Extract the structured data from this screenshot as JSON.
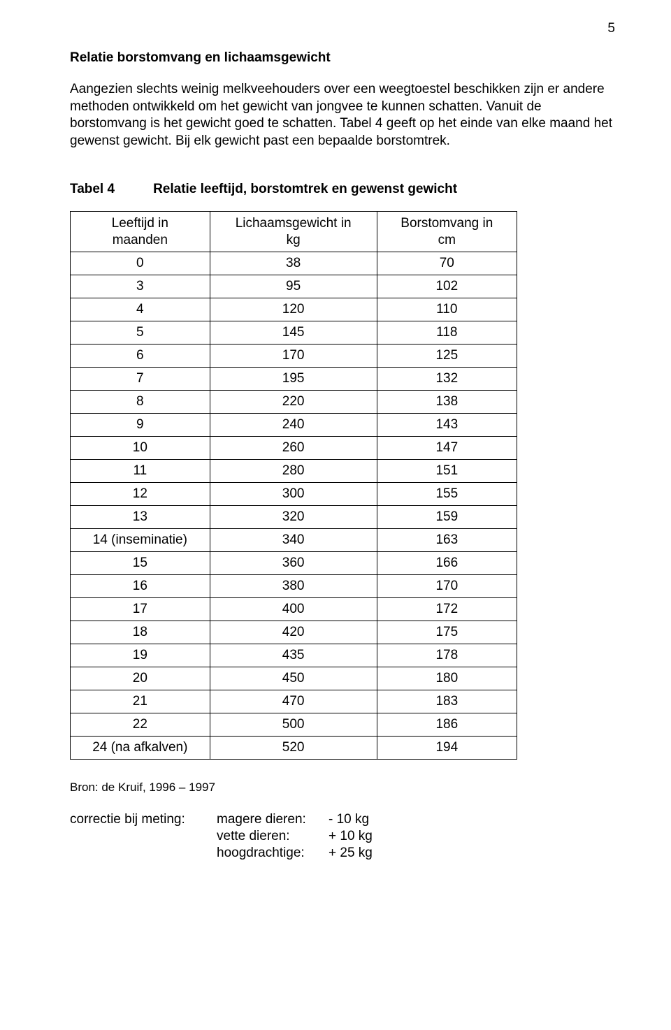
{
  "page_number": "5",
  "heading": "Relatie borstomvang en lichaamsgewicht",
  "paragraph": "Aangezien slechts weinig melkveehouders over een weegtoestel beschikken zijn er andere methoden ontwikkeld om het gewicht van jongvee te kunnen schatten. Vanuit de borstomvang is het gewicht goed te schatten. Tabel 4 geeft op het einde van elke maand het gewenst gewicht. Bij elk gewicht past een bepaalde borstomtrek.",
  "table_label": "Tabel 4",
  "table_caption": "Relatie leeftijd, borstomtrek en gewenst gewicht",
  "columns": {
    "age": {
      "line1": "Leeftijd  in",
      "line2": "maanden"
    },
    "weight": {
      "line1": "Lichaamsgewicht in",
      "line2": "kg"
    },
    "circ": {
      "line1": "Borstomvang in",
      "line2": "cm"
    }
  },
  "rows": [
    {
      "age": "0",
      "kg": "38",
      "cm": "70"
    },
    {
      "age": "3",
      "kg": "95",
      "cm": "102"
    },
    {
      "age": "4",
      "kg": "120",
      "cm": "110"
    },
    {
      "age": "5",
      "kg": "145",
      "cm": "118"
    },
    {
      "age": "6",
      "kg": "170",
      "cm": "125"
    },
    {
      "age": "7",
      "kg": "195",
      "cm": "132"
    },
    {
      "age": "8",
      "kg": "220",
      "cm": "138"
    },
    {
      "age": "9",
      "kg": "240",
      "cm": "143"
    },
    {
      "age": "10",
      "kg": "260",
      "cm": "147"
    },
    {
      "age": "11",
      "kg": "280",
      "cm": "151"
    },
    {
      "age": "12",
      "kg": "300",
      "cm": "155"
    },
    {
      "age": "13",
      "kg": "320",
      "cm": "159"
    },
    {
      "age": "14  (inseminatie)",
      "kg": "340",
      "cm": "163"
    },
    {
      "age": "15",
      "kg": "360",
      "cm": "166"
    },
    {
      "age": "16",
      "kg": "380",
      "cm": "170"
    },
    {
      "age": "17",
      "kg": "400",
      "cm": "172"
    },
    {
      "age": "18",
      "kg": "420",
      "cm": "175"
    },
    {
      "age": "19",
      "kg": "435",
      "cm": "178"
    },
    {
      "age": "20",
      "kg": "450",
      "cm": "180"
    },
    {
      "age": "21",
      "kg": "470",
      "cm": "183"
    },
    {
      "age": "22",
      "kg": "500",
      "cm": "186"
    },
    {
      "age": "24 (na afkalven)",
      "kg": "520",
      "cm": "194"
    }
  ],
  "source": "Bron: de Kruif, 1996 – 1997",
  "correction": {
    "label": "correctie bij meting:",
    "items": [
      {
        "name": "magere dieren:",
        "value": "- 10 kg"
      },
      {
        "name": "vette dieren:",
        "value": "+ 10 kg"
      },
      {
        "name": "hoogdrachtige:",
        "value": "+ 25 kg"
      }
    ]
  }
}
